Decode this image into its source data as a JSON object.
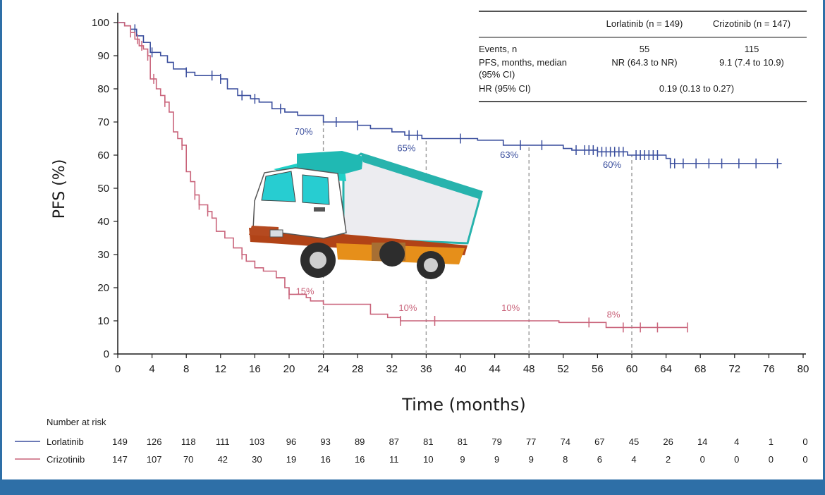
{
  "colors": {
    "lorlatinib": "#3b4f9e",
    "crizotinib": "#c9637a",
    "background_band": "#2e6fa7"
  },
  "chart_data": {
    "type": "line",
    "subtype": "kaplan-meier",
    "xlabel": "Time (months)",
    "ylabel": "PFS (%)",
    "xlim": [
      0,
      80
    ],
    "ylim": [
      0,
      100
    ],
    "xticks": [
      0,
      4,
      8,
      12,
      16,
      20,
      24,
      28,
      32,
      36,
      40,
      44,
      48,
      52,
      56,
      60,
      64,
      68,
      72,
      76,
      80
    ],
    "yticks": [
      0,
      10,
      20,
      30,
      40,
      50,
      60,
      70,
      80,
      90,
      100
    ],
    "grid": false,
    "reference_lines_x": [
      24,
      36,
      48,
      60
    ],
    "series": [
      {
        "name": "Lorlatinib",
        "color": "#3b4f9e",
        "x": [
          0,
          0.8,
          1.5,
          2.2,
          3.0,
          3.8,
          5.0,
          5.8,
          6.5,
          8.0,
          9.0,
          11.0,
          12.0,
          12.8,
          14.0,
          15.5,
          16.5,
          18.0,
          19.5,
          21.0,
          24.0,
          26.0,
          28.0,
          29.5,
          32.0,
          33.5,
          35.5,
          38.0,
          42.0,
          45.0,
          48.0,
          52.0,
          53.0,
          56.0,
          59.5,
          60.5,
          62.0,
          64.0,
          64.5,
          77.5
        ],
        "y": [
          100,
          99,
          98,
          96,
          94,
          91,
          90,
          88,
          86,
          85,
          84,
          84,
          83,
          80,
          78,
          77,
          76,
          74,
          73,
          72,
          70,
          70,
          69,
          68,
          67,
          66,
          65,
          65,
          64.5,
          63,
          63,
          62,
          61.5,
          61,
          60,
          60,
          60,
          59,
          57.5,
          57.5
        ],
        "censor_x": [
          2,
          4,
          8,
          11,
          12,
          14.5,
          16,
          19,
          25.5,
          28,
          34,
          35,
          40,
          47,
          49.5,
          53.5,
          54.5,
          55,
          55.5,
          56,
          56.5,
          57,
          57.5,
          58,
          58.5,
          59,
          60.5,
          61,
          61.5,
          62,
          62.5,
          63,
          64.5,
          65,
          66,
          67.5,
          69,
          70.5,
          72.5,
          74.5,
          77
        ],
        "landmarks": [
          {
            "x": 24,
            "label": "70%"
          },
          {
            "x": 36,
            "label": "65%"
          },
          {
            "x": 48,
            "label": "63%"
          },
          {
            "x": 60,
            "label": "60%"
          }
        ]
      },
      {
        "name": "Crizotinib",
        "color": "#c9637a",
        "x": [
          0,
          0.8,
          1.5,
          2.0,
          2.5,
          3.0,
          3.5,
          3.8,
          4.5,
          5.0,
          5.5,
          6.0,
          6.5,
          7.0,
          7.5,
          8.0,
          8.5,
          9.0,
          9.5,
          10.5,
          11.0,
          11.5,
          12.5,
          13.5,
          14.5,
          15.0,
          16.0,
          17.0,
          18.5,
          19.5,
          20.0,
          22.0,
          22.5,
          24.0,
          27.0,
          29.5,
          31.5,
          33.0,
          36.0,
          40.0,
          48.0,
          51.5,
          57.0,
          59.5,
          61.0,
          63.0,
          66.5
        ],
        "y": [
          100,
          99,
          97,
          95,
          93,
          92,
          90,
          83,
          80,
          78,
          76,
          73,
          67,
          65,
          63,
          55,
          52,
          48,
          45,
          43,
          41,
          37,
          35,
          32,
          30,
          28,
          26,
          25,
          23,
          20,
          18,
          17,
          16,
          15,
          15,
          12,
          11,
          10,
          10,
          10,
          10,
          9.5,
          8,
          8,
          8,
          8,
          8
        ],
        "censor_x": [
          1.5,
          2.3,
          2.8,
          3.5,
          4.2,
          5.5,
          7.5,
          9.0,
          9.5,
          10.5,
          14.5,
          20.0,
          33.0,
          37.0,
          55.0,
          59.0,
          61.0,
          63.0,
          66.5
        ],
        "landmarks": [
          {
            "x": 24,
            "label": "15%"
          },
          {
            "x": 36,
            "label": "10%"
          },
          {
            "x": 48,
            "label": "10%"
          },
          {
            "x": 60,
            "label": "8%"
          }
        ]
      }
    ],
    "summary_table": {
      "headers": [
        "",
        "Lorlatinib (n = 149)",
        "Crizotinib (n = 147)"
      ],
      "rows": [
        {
          "label": "Events, n",
          "lor": "55",
          "cri": "115"
        },
        {
          "label": "PFS, months, median",
          "label2": "(95% CI)",
          "lor": "NR (64.3 to NR)",
          "cri": "9.1 (7.4 to 10.9)"
        },
        {
          "label": "HR (95% CI)",
          "merged": "0.19 (0.13 to 0.27)"
        }
      ]
    },
    "risk_table": {
      "title": "Number at risk",
      "rows": [
        {
          "name": "Lorlatinib",
          "values": [
            149,
            126,
            118,
            111,
            103,
            96,
            93,
            89,
            87,
            81,
            81,
            79,
            77,
            74,
            67,
            45,
            26,
            14,
            4,
            1,
            0
          ]
        },
        {
          "name": "Crizotinib",
          "values": [
            147,
            107,
            70,
            42,
            30,
            19,
            16,
            16,
            11,
            10,
            9,
            9,
            9,
            8,
            6,
            4,
            2,
            0,
            0,
            0,
            0
          ]
        }
      ]
    }
  },
  "decoration": {
    "icon": "truck-icon"
  }
}
